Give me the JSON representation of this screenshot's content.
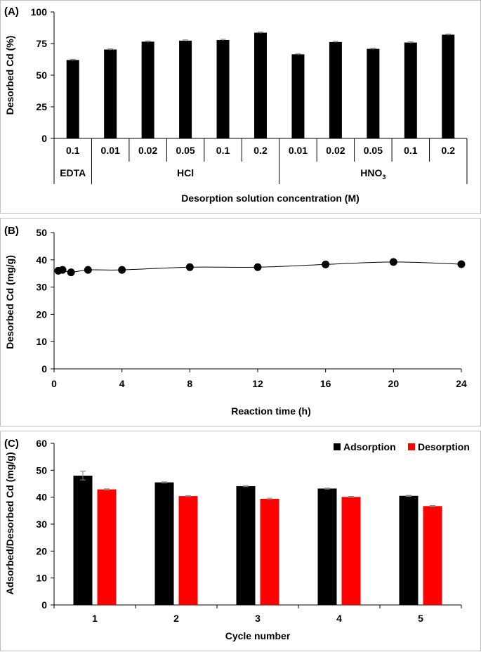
{
  "chart_data": [
    {
      "panel": "(A)",
      "type": "bar",
      "title": "",
      "ylabel": "Desorbed Cd (%)",
      "xlabel": "Desorption solution concentration (M)",
      "ylim": [
        0,
        100
      ],
      "yticks": [
        "0",
        "25",
        "50",
        "75",
        "100"
      ],
      "categories": [
        "0.1",
        "0.01",
        "0.02",
        "0.05",
        "0.1",
        "0.2",
        "0.01",
        "0.02",
        "0.05",
        "0.1",
        "0.2"
      ],
      "values": [
        62,
        70.3,
        76.5,
        77.3,
        77.8,
        83.6,
        66.5,
        76.2,
        70.8,
        75.8,
        82
      ],
      "errors": [
        0.6,
        0.6,
        0.6,
        0.6,
        0.6,
        0.6,
        0.6,
        0.6,
        0.6,
        0.6,
        0.6
      ],
      "groups": [
        {
          "label": "EDTA",
          "count": 1
        },
        {
          "label": "HCl",
          "count": 5
        },
        {
          "label": "HNO",
          "subscript": "3",
          "count": 5
        }
      ]
    },
    {
      "panel": "(B)",
      "type": "scatter",
      "title": "",
      "ylabel": "Desorbed Cd (mg/g)",
      "xlabel": "Reaction time (h)",
      "xlim": [
        0,
        24
      ],
      "ylim": [
        0,
        50
      ],
      "xticks": [
        "0",
        "4",
        "8",
        "12",
        "16",
        "20",
        "24"
      ],
      "yticks": [
        "0",
        "10",
        "20",
        "30",
        "40",
        "50"
      ],
      "x": [
        0.25,
        0.5,
        1,
        2,
        4,
        8,
        12,
        16,
        20,
        24
      ],
      "y": [
        36,
        36.3,
        35.4,
        36.3,
        36.3,
        37.3,
        37.3,
        38.3,
        39.2,
        38.4
      ]
    },
    {
      "panel": "(C)",
      "type": "bar",
      "title": "",
      "ylabel": "Adsorbed/Desorbed Cd (mg/g)",
      "xlabel": "Cycle number",
      "ylim": [
        0,
        60
      ],
      "yticks": [
        "0",
        "10",
        "20",
        "30",
        "40",
        "50",
        "60"
      ],
      "categories": [
        "1",
        "2",
        "3",
        "4",
        "5"
      ],
      "legend_position": "top-right",
      "series": [
        {
          "name": "Adsorption",
          "color": "#000000",
          "values": [
            48,
            45.5,
            44.1,
            43.2,
            40.5
          ],
          "errors": [
            1.6,
            0.2,
            0.2,
            0.2,
            0.2
          ]
        },
        {
          "name": "Desorption",
          "color": "#ff0000",
          "values": [
            42.9,
            40.4,
            39.4,
            40.1,
            36.7
          ],
          "errors": [
            0.2,
            0.2,
            0.2,
            0.2,
            0.2
          ]
        }
      ]
    }
  ]
}
